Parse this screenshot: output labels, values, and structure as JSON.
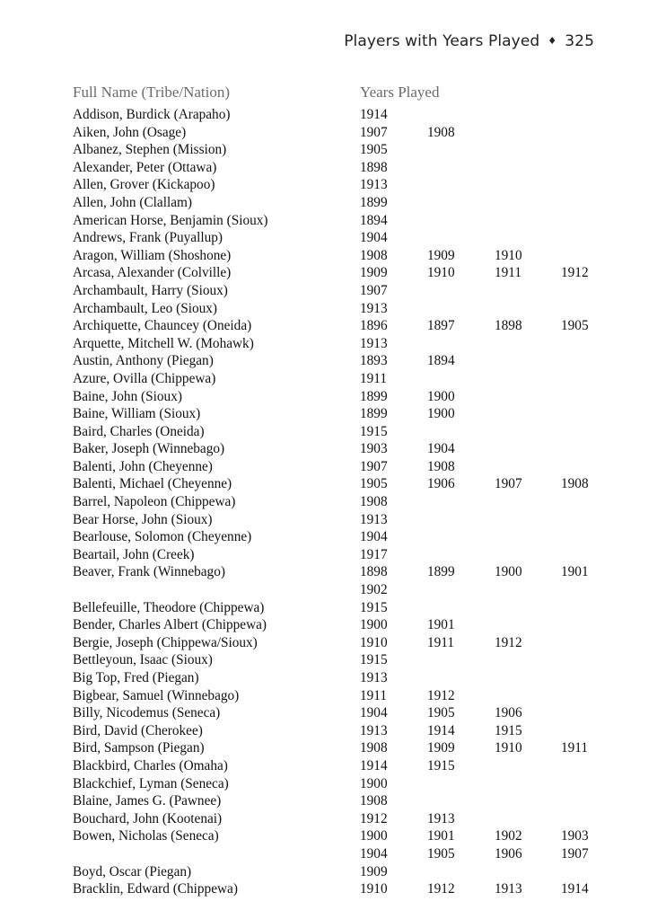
{
  "running_head": {
    "title": "Players with Years Played",
    "separator": "♦",
    "page_number": "325"
  },
  "table": {
    "headers": {
      "name": "Full Name (Tribe/Nation)",
      "years": "Years Played"
    },
    "rows": [
      {
        "name": "Addison, Burdick (Arapaho)",
        "years": [
          "1914"
        ]
      },
      {
        "name": "Aiken, John (Osage)",
        "years": [
          "1907",
          "1908"
        ]
      },
      {
        "name": "Albanez, Stephen (Mission)",
        "years": [
          "1905"
        ]
      },
      {
        "name": "Alexander, Peter (Ottawa)",
        "years": [
          "1898"
        ]
      },
      {
        "name": "Allen, Grover (Kickapoo)",
        "years": [
          "1913"
        ]
      },
      {
        "name": "Allen, John (Clallam)",
        "years": [
          "1899"
        ]
      },
      {
        "name": "American Horse, Benjamin (Sioux)",
        "years": [
          "1894"
        ]
      },
      {
        "name": "Andrews, Frank (Puyallup)",
        "years": [
          "1904"
        ]
      },
      {
        "name": "Aragon, William (Shoshone)",
        "years": [
          "1908",
          "1909",
          "1910"
        ]
      },
      {
        "name": "Arcasa, Alexander (Colville)",
        "years": [
          "1909",
          "1910",
          "1911",
          "1912"
        ]
      },
      {
        "name": "Archambault, Harry (Sioux)",
        "years": [
          "1907"
        ]
      },
      {
        "name": "Archambault, Leo (Sioux)",
        "years": [
          "1913"
        ]
      },
      {
        "name": "Archiquette, Chauncey (Oneida)",
        "years": [
          "1896",
          "1897",
          "1898",
          "1905"
        ]
      },
      {
        "name": "Arquette, Mitchell W. (Mohawk)",
        "years": [
          "1913"
        ]
      },
      {
        "name": "Austin, Anthony (Piegan)",
        "years": [
          "1893",
          "1894"
        ]
      },
      {
        "name": "Azure, Ovilla (Chippewa)",
        "years": [
          "1911"
        ]
      },
      {
        "name": "Baine, John (Sioux)",
        "years": [
          "1899",
          "1900"
        ]
      },
      {
        "name": "Baine, William (Sioux)",
        "years": [
          "1899",
          "1900"
        ]
      },
      {
        "name": "Baird, Charles (Oneida)",
        "years": [
          "1915"
        ]
      },
      {
        "name": "Baker, Joseph (Winnebago)",
        "years": [
          "1903",
          "1904"
        ]
      },
      {
        "name": "Balenti, John (Cheyenne)",
        "years": [
          "1907",
          "1908"
        ]
      },
      {
        "name": "Balenti, Michael (Cheyenne)",
        "years": [
          "1905",
          "1906",
          "1907",
          "1908"
        ]
      },
      {
        "name": "Barrel, Napoleon (Chippewa)",
        "years": [
          "1908"
        ]
      },
      {
        "name": "Bear Horse, John (Sioux)",
        "years": [
          "1913"
        ]
      },
      {
        "name": "Bearlouse, Solomon (Cheyenne)",
        "years": [
          "1904"
        ]
      },
      {
        "name": "Beartail, John (Creek)",
        "years": [
          "1917"
        ]
      },
      {
        "name": "Beaver, Frank (Winnebago)",
        "years": [
          "1898",
          "1899",
          "1900",
          "1901"
        ]
      },
      {
        "name": "",
        "years": [
          "1902"
        ]
      },
      {
        "name": "Bellefeuille, Theodore (Chippewa)",
        "years": [
          "1915"
        ]
      },
      {
        "name": "Bender, Charles Albert (Chippewa)",
        "years": [
          "1900",
          "1901"
        ]
      },
      {
        "name": "Bergie, Joseph (Chippewa/Sioux)",
        "years": [
          "1910",
          "1911",
          "1912"
        ]
      },
      {
        "name": "Bettleyoun, Isaac (Sioux)",
        "years": [
          "1915"
        ]
      },
      {
        "name": "Big Top, Fred (Piegan)",
        "years": [
          "1913"
        ]
      },
      {
        "name": "Bigbear, Samuel (Winnebago)",
        "years": [
          "1911",
          "1912"
        ]
      },
      {
        "name": "Billy, Nicodemus (Seneca)",
        "years": [
          "1904",
          "1905",
          "1906"
        ]
      },
      {
        "name": "Bird, David (Cherokee)",
        "years": [
          "1913",
          "1914",
          "1915"
        ]
      },
      {
        "name": "Bird, Sampson (Piegan)",
        "years": [
          "1908",
          "1909",
          "1910",
          "1911"
        ]
      },
      {
        "name": "Blackbird, Charles (Omaha)",
        "years": [
          "1914",
          "1915"
        ]
      },
      {
        "name": "Blackchief, Lyman (Seneca)",
        "years": [
          "1900"
        ]
      },
      {
        "name": "Blaine, James G. (Pawnee)",
        "years": [
          "1908"
        ]
      },
      {
        "name": "Bouchard, John (Kootenai)",
        "years": [
          "1912",
          "1913"
        ]
      },
      {
        "name": "Bowen, Nicholas (Seneca)",
        "years": [
          "1900",
          "1901",
          "1902",
          "1903"
        ]
      },
      {
        "name": "",
        "years": [
          "1904",
          "1905",
          "1906",
          "1907"
        ]
      },
      {
        "name": "Boyd, Oscar (Piegan)",
        "years": [
          "1909"
        ]
      },
      {
        "name": "Bracklin, Edward (Chippewa)",
        "years": [
          "1910",
          "1912",
          "1913",
          "1914"
        ]
      }
    ]
  }
}
